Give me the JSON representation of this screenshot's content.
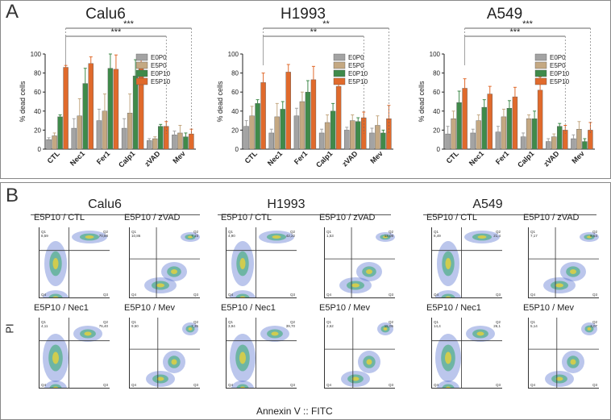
{
  "panel_a": {
    "label": "A"
  },
  "panel_b": {
    "label": "B"
  },
  "colors": {
    "E0P0": "#a3a3a3",
    "E5P0": "#c4a882",
    "E0P10": "#3f8a4a",
    "E5P10": "#e06a2c"
  },
  "legend": [
    "E0P0",
    "E5P0",
    "E0P10",
    "E5P10"
  ],
  "chart_data": [
    {
      "type": "bar",
      "title": "Calu6",
      "ylabel": "% dead cells",
      "ylim": [
        0,
        100
      ],
      "yticks": [
        "0",
        "20",
        "40",
        "60",
        "80",
        "100"
      ],
      "categories": [
        "CTL",
        "Nec1",
        "Fer1",
        "Calp1",
        "zVAD",
        "Mev"
      ],
      "series": [
        {
          "name": "E0P0",
          "values": [
            10,
            22,
            30,
            22,
            9,
            15
          ],
          "errors": [
            2,
            10,
            12,
            10,
            2,
            4
          ]
        },
        {
          "name": "E5P0",
          "values": [
            14,
            35,
            40,
            38,
            11,
            17
          ],
          "errors": [
            3,
            18,
            18,
            20,
            2,
            8
          ]
        },
        {
          "name": "E0P10",
          "values": [
            34,
            69,
            85,
            77,
            24,
            13
          ],
          "errors": [
            2,
            16,
            15,
            17,
            2,
            4
          ]
        },
        {
          "name": "E5P10",
          "values": [
            86,
            90,
            84,
            91,
            24,
            16
          ],
          "errors": [
            2,
            7,
            15,
            6,
            5,
            5
          ]
        }
      ],
      "significance": [
        {
          "label": "***",
          "from": "CTL",
          "to": "Mev"
        },
        {
          "label": "***",
          "from": "CTL",
          "to": "zVAD"
        }
      ]
    },
    {
      "type": "bar",
      "title": "H1993",
      "ylabel": "% dead cells",
      "ylim": [
        0,
        100
      ],
      "yticks": [
        "0",
        "20",
        "40",
        "60",
        "80",
        "100"
      ],
      "categories": [
        "CTL",
        "Nec1",
        "Fer1",
        "Calp1",
        "zVAD",
        "Mev"
      ],
      "series": [
        {
          "name": "E0P0",
          "values": [
            24,
            17,
            35,
            17,
            20,
            17
          ],
          "errors": [
            6,
            4,
            8,
            4,
            3,
            5
          ]
        },
        {
          "name": "E5P0",
          "values": [
            35,
            34,
            50,
            28,
            30,
            25
          ],
          "errors": [
            10,
            14,
            10,
            8,
            6,
            10
          ]
        },
        {
          "name": "E0P10",
          "values": [
            48,
            42,
            60,
            40,
            29,
            17
          ],
          "errors": [
            4,
            8,
            12,
            8,
            4,
            3
          ]
        },
        {
          "name": "E5P10",
          "values": [
            70,
            81,
            73,
            66,
            33,
            32
          ],
          "errors": [
            10,
            8,
            14,
            8,
            6,
            14
          ]
        }
      ],
      "significance": [
        {
          "label": "**",
          "from": "CTL",
          "to": "Mev"
        },
        {
          "label": "**",
          "from": "CTL",
          "to": "zVAD"
        }
      ]
    },
    {
      "type": "bar",
      "title": "A549",
      "ylabel": "% dead cells",
      "ylim": [
        0,
        100
      ],
      "yticks": [
        "0",
        "20",
        "40",
        "60",
        "80",
        "100"
      ],
      "categories": [
        "CTL",
        "Nec1",
        "Fer1",
        "Calp1",
        "zVAD",
        "Mev"
      ],
      "series": [
        {
          "name": "E0P0",
          "values": [
            16,
            17,
            18,
            13,
            8,
            11
          ],
          "errors": [
            8,
            4,
            6,
            4,
            3,
            4
          ]
        },
        {
          "name": "E5P0",
          "values": [
            32,
            30,
            34,
            32,
            13,
            21
          ],
          "errors": [
            8,
            6,
            8,
            4,
            3,
            8
          ]
        },
        {
          "name": "E0P10",
          "values": [
            49,
            44,
            43,
            32,
            24,
            8
          ],
          "errors": [
            12,
            8,
            8,
            8,
            3,
            3
          ]
        },
        {
          "name": "E5P10",
          "values": [
            64,
            58,
            55,
            62,
            20,
            20
          ],
          "errors": [
            10,
            8,
            10,
            14,
            5,
            8
          ]
        }
      ],
      "significance": [
        {
          "label": "***",
          "from": "CTL",
          "to": "Mev"
        },
        {
          "label": "***",
          "from": "CTL",
          "to": "zVAD"
        }
      ]
    }
  ],
  "flow": {
    "groups": [
      "Calu6",
      "H1993",
      "A549"
    ],
    "ylabel": "PI",
    "xlabel": "Annexin V :: FITC",
    "plots": [
      {
        "label": "E5P10 / CTL",
        "q": [
          "8,59",
          "70,88",
          "12,46",
          "7,39"
        ]
      },
      {
        "label": "E5P10 / zVAD",
        "q": [
          "10,86",
          "7,15",
          "79,82",
          "2,16"
        ]
      },
      {
        "label": "E5P10 / Nec1",
        "q": [
          "4,11",
          "76,40",
          "7,07",
          "11,81"
        ]
      },
      {
        "label": "E5P10 / Mev",
        "q": [
          "9,50",
          "7,35",
          "80,73",
          "2,18"
        ]
      },
      {
        "label": "E5P10 / CTL",
        "q": [
          "4,90",
          "42,22",
          "25,73",
          "27,10"
        ]
      },
      {
        "label": "E5P10 / zVAD",
        "q": [
          "1,53",
          "13,08",
          "71,86",
          "13,54"
        ]
      },
      {
        "label": "E5P10 / Nec1",
        "q": [
          "3,94",
          "39,70",
          "28,56",
          "27,71"
        ]
      },
      {
        "label": "E5P10 / Mev",
        "q": [
          "2,62",
          "15,05",
          "68,44",
          "13,88"
        ]
      },
      {
        "label": "E5P10 / CTL",
        "q": [
          "8,49",
          "21,4",
          "44,6",
          "24,5"
        ]
      },
      {
        "label": "E5P10 / zVAD",
        "q": [
          "7,17",
          "8,54",
          "81,47",
          "2,82"
        ]
      },
      {
        "label": "E5P10 / Nec1",
        "q": [
          "14,4",
          "26,1",
          "34,4",
          "25,2"
        ]
      },
      {
        "label": "E5P10 / Mev",
        "q": [
          "5,14",
          "3,07",
          "89,53",
          "4,26"
        ]
      }
    ]
  }
}
